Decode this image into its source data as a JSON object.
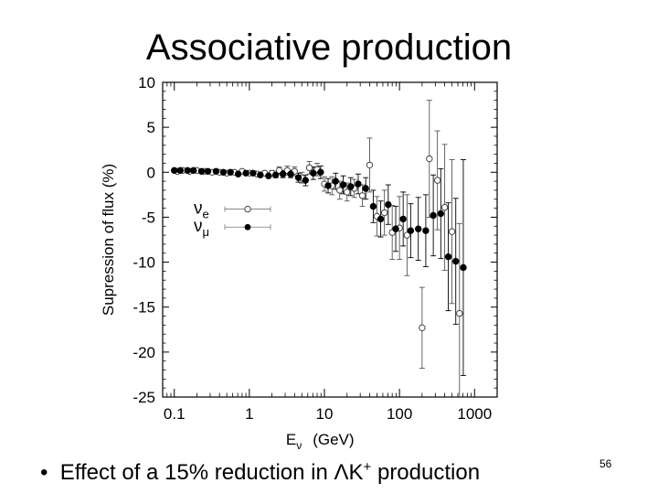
{
  "slide": {
    "title": "Associative production",
    "bullet_marker": "•",
    "bullet_pre": "Effect of a 15% reduction in ΛK",
    "bullet_sup": "+",
    "bullet_post": " production",
    "page_number": "56"
  },
  "chart_data": {
    "type": "scatter",
    "title": "",
    "xlabel": "Eν (GeV)",
    "xlabel_main": "E",
    "xlabel_sub": "ν",
    "xlabel_unit": "(GeV)",
    "ylabel": "Supression of flux (%)",
    "xscale": "log",
    "xlim": [
      0.07,
      2000
    ],
    "ylim": [
      -25,
      10
    ],
    "xticks": [
      0.1,
      1,
      10,
      100,
      1000
    ],
    "xtick_labels": [
      "0.1",
      "1",
      "10",
      "100",
      "1000"
    ],
    "yticks": [
      10,
      5,
      0,
      -5,
      -10,
      -15,
      -20,
      -25
    ],
    "ytick_labels": [
      "10",
      "5",
      "0",
      "-5",
      "-10",
      "-15",
      "-20",
      "-25"
    ],
    "grid": false,
    "legend_position": "middle-left",
    "series": [
      {
        "name": "νe",
        "name_main": "ν",
        "name_sub": "e",
        "marker": "open-circle",
        "x": [
          0.11,
          0.13,
          0.16,
          0.2,
          0.25,
          0.32,
          0.4,
          0.5,
          0.63,
          0.8,
          1.0,
          1.26,
          1.6,
          2.0,
          2.5,
          3.2,
          4.0,
          5.0,
          6.3,
          8.0,
          10.0,
          12.6,
          16.0,
          20.0,
          25.0,
          32.0,
          40.0,
          50.0,
          63.0,
          80.0,
          100.0,
          126.0,
          200.0,
          250.0,
          320.0,
          400.0,
          500.0,
          630.0
        ],
        "y": [
          0.1,
          0.2,
          0.1,
          0.2,
          0.1,
          0.0,
          0.0,
          -0.1,
          0.0,
          0.1,
          -0.1,
          -0.2,
          -0.1,
          -0.1,
          0.2,
          0.2,
          0.1,
          -0.6,
          0.5,
          0.3,
          -1.3,
          -1.5,
          -2.0,
          -2.2,
          -1.8,
          -2.6,
          0.8,
          -4.9,
          -4.5,
          -6.7,
          -6.2,
          -7.0,
          -17.3,
          1.5,
          -0.9,
          -3.9,
          -6.6,
          -15.7
        ],
        "err": [
          0.2,
          0.2,
          0.2,
          0.2,
          0.2,
          0.2,
          0.2,
          0.2,
          0.2,
          0.2,
          0.2,
          0.2,
          0.2,
          0.3,
          0.4,
          0.5,
          0.5,
          0.6,
          0.7,
          0.7,
          0.8,
          1.0,
          1.0,
          1.0,
          1.0,
          1.2,
          3.0,
          2.2,
          2.5,
          3.0,
          3.5,
          4.5,
          4.5,
          6.5,
          5.5,
          7.0,
          8.0,
          10.0
        ]
      },
      {
        "name": "νμ",
        "name_main": "ν",
        "name_sub": "μ",
        "marker": "filled-circle",
        "x": [
          0.1,
          0.12,
          0.15,
          0.18,
          0.23,
          0.28,
          0.36,
          0.45,
          0.56,
          0.71,
          0.9,
          1.12,
          1.4,
          1.8,
          2.24,
          2.8,
          3.55,
          4.5,
          5.6,
          7.1,
          8.9,
          11.2,
          14.1,
          17.8,
          22.4,
          28.2,
          35.5,
          44.7,
          56.2,
          70.8,
          89.1,
          112.0,
          141.0,
          178.0,
          224.0,
          282.0,
          355.0,
          447.0,
          562.0,
          708.0
        ],
        "y": [
          0.2,
          0.2,
          0.2,
          0.2,
          0.1,
          0.1,
          0.1,
          0.0,
          0.0,
          -0.2,
          -0.1,
          -0.1,
          -0.3,
          -0.4,
          -0.3,
          -0.2,
          -0.2,
          -0.6,
          -0.9,
          -0.1,
          0.0,
          -1.5,
          -1.0,
          -1.4,
          -1.6,
          -1.3,
          -1.8,
          -3.8,
          -5.2,
          -3.6,
          -6.3,
          -5.2,
          -6.5,
          -6.3,
          -6.5,
          -4.8,
          -4.6,
          -9.4,
          -9.9,
          -10.6
        ],
        "err": [
          0.2,
          0.2,
          0.2,
          0.2,
          0.2,
          0.2,
          0.2,
          0.2,
          0.2,
          0.2,
          0.2,
          0.2,
          0.2,
          0.2,
          0.3,
          0.4,
          0.4,
          0.5,
          0.6,
          0.7,
          0.7,
          0.8,
          0.9,
          1.0,
          1.0,
          1.1,
          1.2,
          1.8,
          2.0,
          2.2,
          2.5,
          3.0,
          3.0,
          3.5,
          4.0,
          4.5,
          5.0,
          6.0,
          7.0,
          12.0
        ]
      }
    ]
  }
}
